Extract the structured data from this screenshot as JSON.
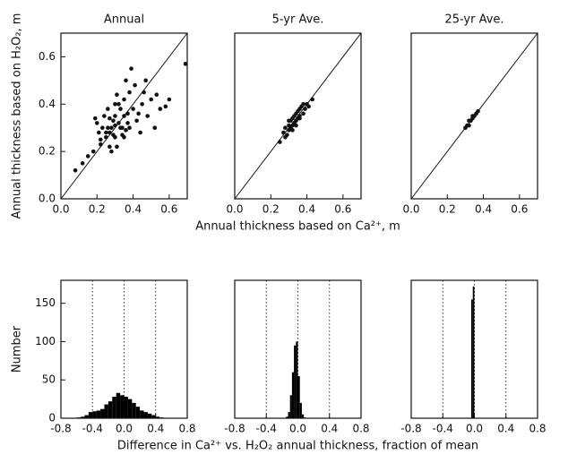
{
  "chart_data": [
    {
      "type": "scatter",
      "title": "Annual",
      "ylabel": "Annual thickness based on H₂O₂, m",
      "color": "#111111",
      "x": [
        0.25,
        0.28,
        0.3,
        0.32,
        0.35,
        0.22,
        0.27,
        0.33,
        0.38,
        0.4,
        0.18,
        0.2,
        0.24,
        0.29,
        0.31,
        0.36,
        0.42,
        0.45,
        0.5,
        0.15,
        0.12,
        0.08,
        0.26,
        0.3,
        0.34,
        0.37,
        0.41,
        0.44,
        0.48,
        0.52,
        0.55,
        0.6,
        0.23,
        0.27,
        0.31,
        0.35,
        0.39,
        0.21,
        0.25,
        0.29,
        0.33,
        0.37,
        0.46,
        0.28,
        0.32,
        0.36,
        0.26,
        0.3,
        0.34,
        0.19,
        0.22,
        0.43,
        0.47,
        0.53,
        0.58,
        0.38,
        0.3,
        0.27,
        0.35,
        0.69
      ],
      "values": [
        0.28,
        0.3,
        0.35,
        0.4,
        0.42,
        0.25,
        0.22,
        0.3,
        0.45,
        0.38,
        0.2,
        0.32,
        0.35,
        0.27,
        0.44,
        0.5,
        0.33,
        0.4,
        0.42,
        0.18,
        0.15,
        0.12,
        0.38,
        0.26,
        0.3,
        0.36,
        0.48,
        0.28,
        0.35,
        0.3,
        0.38,
        0.42,
        0.3,
        0.34,
        0.22,
        0.26,
        0.55,
        0.28,
        0.26,
        0.33,
        0.38,
        0.32,
        0.45,
        0.2,
        0.32,
        0.29,
        0.3,
        0.31,
        0.27,
        0.34,
        0.23,
        0.36,
        0.5,
        0.44,
        0.39,
        0.3,
        0.4,
        0.28,
        0.35,
        0.57
      ],
      "xlim": [
        0,
        0.7
      ],
      "ylim": [
        0,
        0.7
      ],
      "xticks": [
        {
          "value": 0,
          "label": "0.0"
        },
        0.2,
        0.4,
        0.6
      ],
      "yticks": [
        {
          "value": 0,
          "label": "0.0"
        },
        0.2,
        0.4,
        0.6
      ]
    },
    {
      "type": "scatter",
      "title": "5-yr Ave.",
      "xlabel": "Annual thickness based on Ca²⁺, m",
      "color": "#111111",
      "x": [
        0.25,
        0.27,
        0.28,
        0.29,
        0.3,
        0.3,
        0.31,
        0.31,
        0.32,
        0.32,
        0.33,
        0.33,
        0.34,
        0.34,
        0.35,
        0.35,
        0.36,
        0.36,
        0.37,
        0.38,
        0.39,
        0.4,
        0.41,
        0.43,
        0.28,
        0.3,
        0.32,
        0.34,
        0.36,
        0.38
      ],
      "values": [
        0.24,
        0.28,
        0.3,
        0.27,
        0.31,
        0.29,
        0.33,
        0.3,
        0.34,
        0.31,
        0.32,
        0.35,
        0.36,
        0.33,
        0.34,
        0.37,
        0.35,
        0.38,
        0.39,
        0.36,
        0.38,
        0.4,
        0.39,
        0.42,
        0.26,
        0.33,
        0.29,
        0.31,
        0.34,
        0.4
      ],
      "xlim": [
        0,
        0.7
      ],
      "ylim": [
        0,
        0.7
      ],
      "xticks": [
        {
          "value": 0,
          "label": "0.0"
        },
        0.2,
        0.4,
        0.6
      ]
    },
    {
      "type": "scatter",
      "title": "25-yr Ave.",
      "color": "#111111",
      "x": [
        0.3,
        0.31,
        0.32,
        0.33,
        0.34,
        0.35,
        0.36,
        0.37,
        0.32,
        0.34
      ],
      "values": [
        0.3,
        0.31,
        0.33,
        0.33,
        0.34,
        0.35,
        0.36,
        0.37,
        0.31,
        0.35
      ],
      "xlim": [
        0,
        0.7
      ],
      "ylim": [
        0,
        0.7
      ],
      "xticks": [
        {
          "value": 0,
          "label": "0.0"
        },
        0.2,
        0.4,
        0.6
      ]
    },
    {
      "type": "histogram",
      "ylabel": "Number",
      "color": "#000000",
      "bins": [
        -0.6,
        -0.55,
        -0.5,
        -0.45,
        -0.4,
        -0.35,
        -0.3,
        -0.25,
        -0.2,
        -0.15,
        -0.1,
        -0.05,
        0,
        0.05,
        0.1,
        0.15,
        0.2,
        0.25,
        0.3,
        0.35,
        0.4,
        0.45,
        0.5
      ],
      "values": [
        1,
        2,
        4,
        8,
        9,
        10,
        12,
        18,
        22,
        28,
        33,
        30,
        28,
        25,
        20,
        15,
        10,
        8,
        6,
        4,
        2,
        1
      ],
      "xlim": [
        -0.8,
        0.8
      ],
      "ylim": [
        0,
        180
      ],
      "vlines": [
        -0.4,
        0,
        0.4
      ],
      "xticks": [
        -0.8,
        -0.4,
        {
          "value": 0,
          "label": "0.0"
        },
        0.4,
        0.8
      ],
      "yticks": [
        0,
        50,
        100,
        150
      ]
    },
    {
      "type": "histogram",
      "xlabel": "Difference in Ca²⁺ vs. H₂O₂ annual thickness, fraction of mean",
      "color": "#000000",
      "bins": [
        -0.15,
        -0.125,
        -0.1,
        -0.075,
        -0.05,
        -0.025,
        0,
        0.025,
        0.05,
        0.075,
        0.1
      ],
      "values": [
        2,
        8,
        30,
        60,
        95,
        100,
        55,
        20,
        5,
        1
      ],
      "xlim": [
        -0.8,
        0.8
      ],
      "ylim": [
        0,
        180
      ],
      "vlines": [
        -0.4,
        0,
        0.4
      ],
      "xticks": [
        -0.8,
        -0.4,
        {
          "value": 0,
          "label": "0.0"
        },
        0.4,
        0.8
      ]
    },
    {
      "type": "histogram",
      "color": "#000000",
      "bins": [
        -0.04,
        -0.02,
        0
      ],
      "values": [
        155,
        172
      ],
      "xlim": [
        -0.8,
        0.8
      ],
      "ylim": [
        0,
        180
      ],
      "vlines": [
        -0.4,
        0,
        0.4
      ],
      "xticks": [
        -0.8,
        -0.4,
        {
          "value": 0,
          "label": "0.0"
        },
        0.4,
        0.8
      ]
    }
  ]
}
